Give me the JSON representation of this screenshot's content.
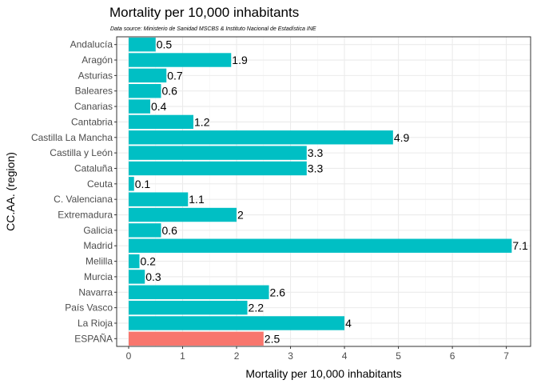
{
  "chart_data": {
    "type": "bar",
    "orientation": "horizontal",
    "title": "Mortality per 10,000 inhabitants",
    "subtitle": "Data source: Ministerio de Sanidad MSCBS & Instituto Nacional de Estadística INE",
    "xlabel": "Mortality per 10,000 inhabitants",
    "ylabel": "CC.AA. (region)",
    "xlim": [
      0,
      7.45
    ],
    "xticks": [
      "0",
      "1",
      "2",
      "3",
      "4",
      "5",
      "6",
      "7"
    ],
    "grid": true,
    "legend": "none",
    "categories": [
      "Andalucía",
      "Aragón",
      "Asturias",
      "Baleares",
      "Canarias",
      "Cantabria",
      "Castilla La Mancha",
      "Castilla y León",
      "Cataluña",
      "Ceuta",
      "C. Valenciana",
      "Extremadura",
      "Galicia",
      "Madrid",
      "Melilla",
      "Murcia",
      "Navarra",
      "País Vasco",
      "La Rioja",
      "ESPAÑA"
    ],
    "values": [
      0.5,
      1.9,
      0.7,
      0.6,
      0.4,
      1.2,
      4.9,
      3.3,
      3.3,
      0.1,
      1.1,
      2,
      0.6,
      7.1,
      0.2,
      0.3,
      2.6,
      2.2,
      4,
      2.5
    ],
    "value_labels": [
      "0.5",
      "1.9",
      "0.7",
      "0.6",
      "0.4",
      "1.2",
      "4.9",
      "3.3",
      "3.3",
      "0.1",
      "1.1",
      "2",
      "0.6",
      "7.1",
      "0.2",
      "0.3",
      "2.6",
      "2.2",
      "4",
      "2.5"
    ],
    "colors": {
      "region": "#00BFC4",
      "national": "#F8766D",
      "highlight_category": "ESPAÑA"
    }
  }
}
